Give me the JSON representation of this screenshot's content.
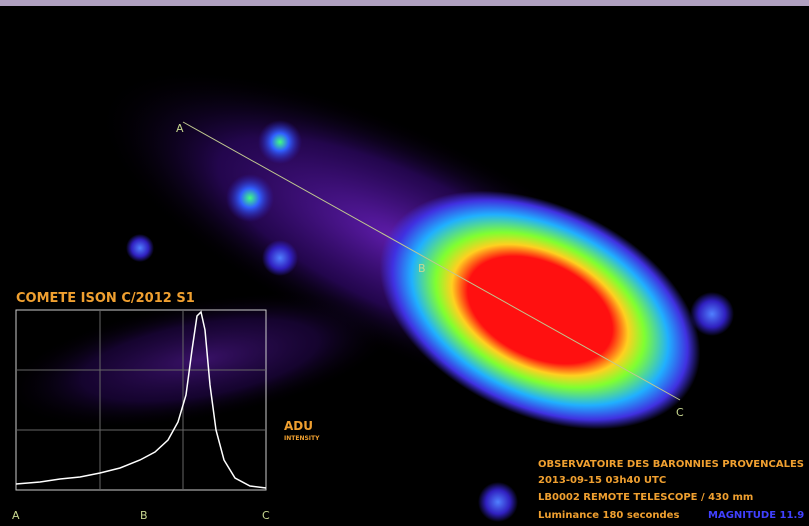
{
  "title": "COMETE ISON C/2012 S1",
  "image_labels": [
    "A",
    "B",
    "C"
  ],
  "profile": {
    "y_label": "ADU",
    "y_sublabel": "INTENSITY",
    "x_labels": [
      "A",
      "B",
      "C"
    ]
  },
  "caption": {
    "observatory": "OBSERVATOIRE DES BARONNIES PROVENCALES",
    "date": "2013-09-15 03h40 UTC",
    "telescope": "LB0002 REMOTE TELESCOPE / 430 mm",
    "exposure": "Luminance 180 secondes",
    "magnitude": "MAGNITUDE 11.9"
  }
}
